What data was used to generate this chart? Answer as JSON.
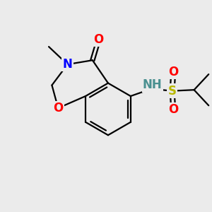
{
  "bg_color": "#ebebeb",
  "atom_colors": {
    "C": "#000000",
    "N": "#0000ff",
    "O": "#ff0000",
    "S": "#b8b800",
    "H": "#4a9090"
  },
  "bond_color": "#000000",
  "bond_width": 1.6,
  "dbo": 0.12,
  "fs": 12,
  "fs_small": 10
}
